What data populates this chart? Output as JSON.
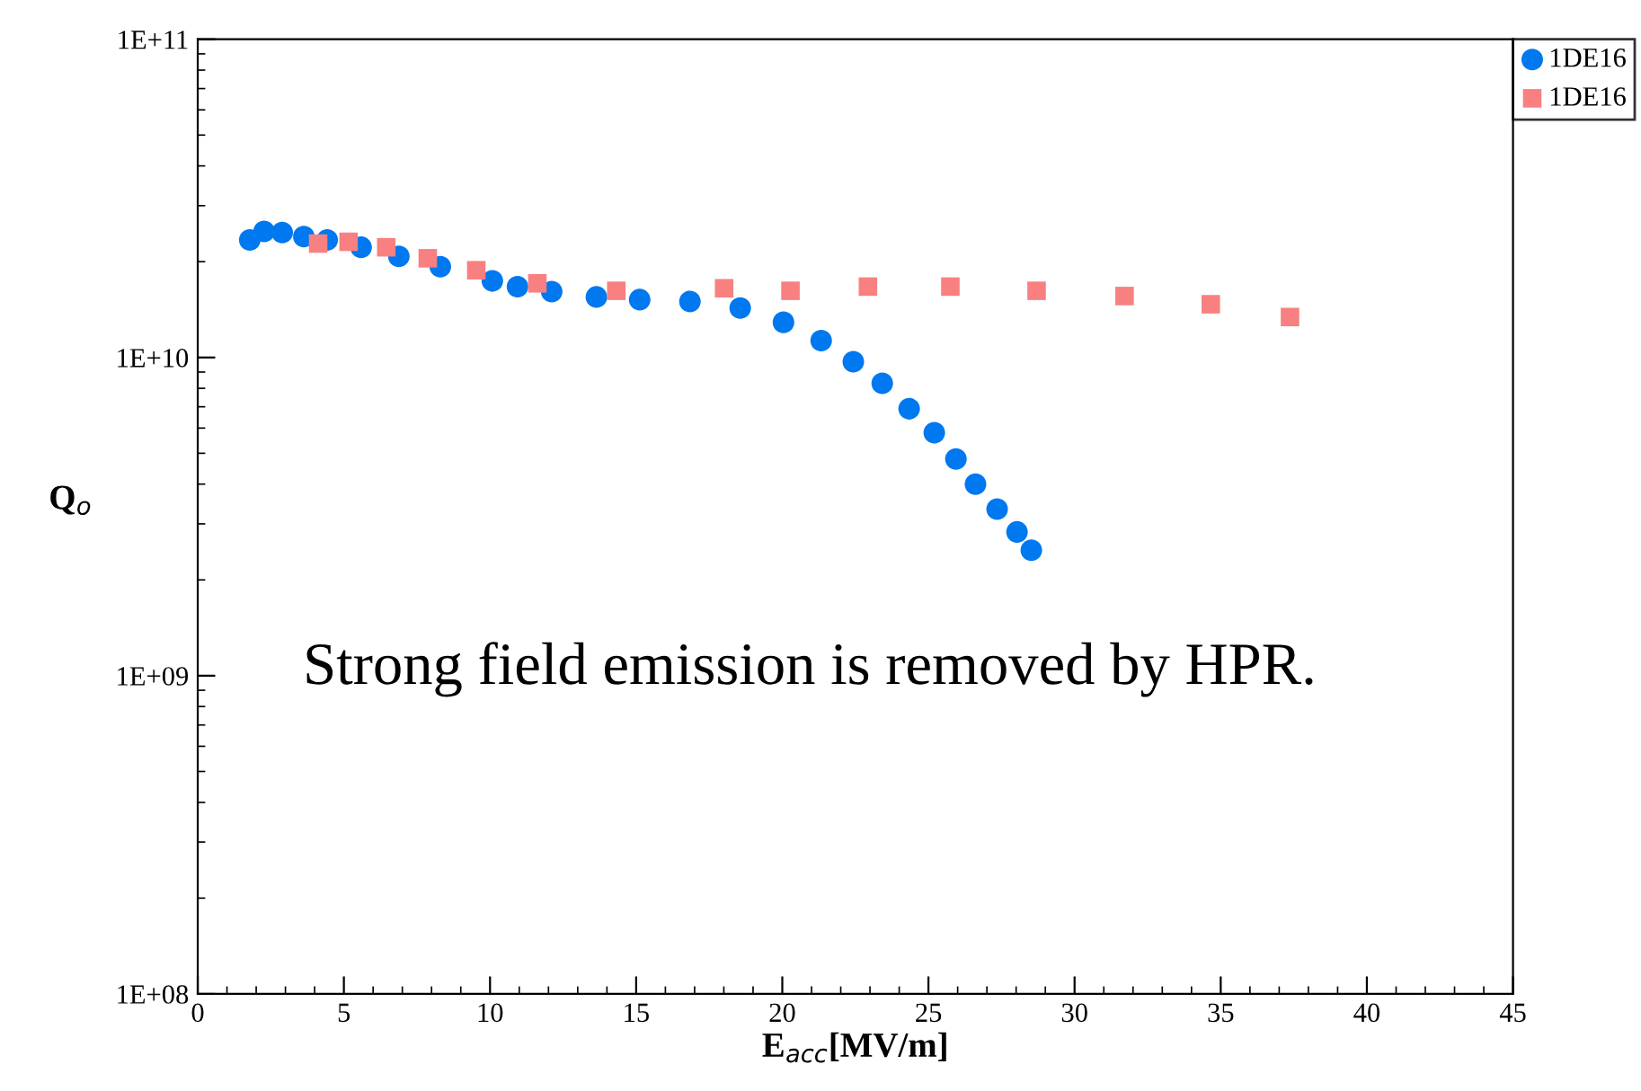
{
  "chart_data": {
    "type": "scatter",
    "xlabel": "E$_{acc}$[MV/m]",
    "ylabel": "Q$_{o}$",
    "log": "y",
    "grid": false,
    "legend": "top right",
    "xlim": [
      0,
      45
    ],
    "xticks": [
      0,
      5,
      10,
      15,
      20,
      25,
      30,
      35,
      40,
      45
    ],
    "ylim": [
      100000000.0,
      100000000000.0
    ],
    "yticks": [
      {
        "value": 100000000.0,
        "label": "1E+08"
      },
      {
        "value": 1000000000.0,
        "label": "1E+09"
      },
      {
        "value": 10000000000.0,
        "label": "1E+10"
      },
      {
        "value": 100000000000.0,
        "label": "1E+11"
      }
    ],
    "annotations": [
      "Strong field emission is removed by HPR."
    ],
    "series": [
      {
        "name": "1DE16",
        "color": "#0078f0",
        "marker": "circle",
        "x": [
          1.78,
          2.27,
          2.89,
          3.63,
          4.43,
          5.59,
          6.88,
          8.3,
          10.08,
          10.94,
          12.11,
          13.64,
          15.12,
          16.84,
          18.56,
          20.04,
          21.33,
          22.43,
          23.42,
          24.34,
          25.2,
          25.94,
          26.61,
          27.35,
          28.03,
          28.52
        ],
        "values": [
          23400000000.0,
          24900000000.0,
          24700000000.0,
          24000000000.0,
          23400000000.0,
          22200000000.0,
          20800000000.0,
          19300000000.0,
          17400000000.0,
          16700000000.0,
          16100000000.0,
          15500000000.0,
          15200000000.0,
          15000000000.0,
          14300000000.0,
          12900000000.0,
          11300000000.0,
          9700000000.0,
          8300000000.0,
          6900000000.0,
          5800000000.0,
          4800000000.0,
          4000000000.0,
          3340000000.0,
          2830000000.0,
          2480000000.0
        ]
      },
      {
        "name": "1DE16",
        "color": "#f88080",
        "marker": "square",
        "x": [
          4.12,
          5.16,
          6.45,
          7.87,
          9.53,
          11.62,
          14.32,
          18.01,
          20.28,
          22.93,
          25.75,
          28.7,
          31.71,
          34.66,
          37.37
        ],
        "values": [
          22800000000.0,
          23100000000.0,
          22200000000.0,
          20500000000.0,
          18800000000.0,
          17100000000.0,
          16200000000.0,
          16500000000.0,
          16200000000.0,
          16700000000.0,
          16700000000.0,
          16200000000.0,
          15600000000.0,
          14700000000.0,
          13400000000.0
        ]
      }
    ]
  }
}
